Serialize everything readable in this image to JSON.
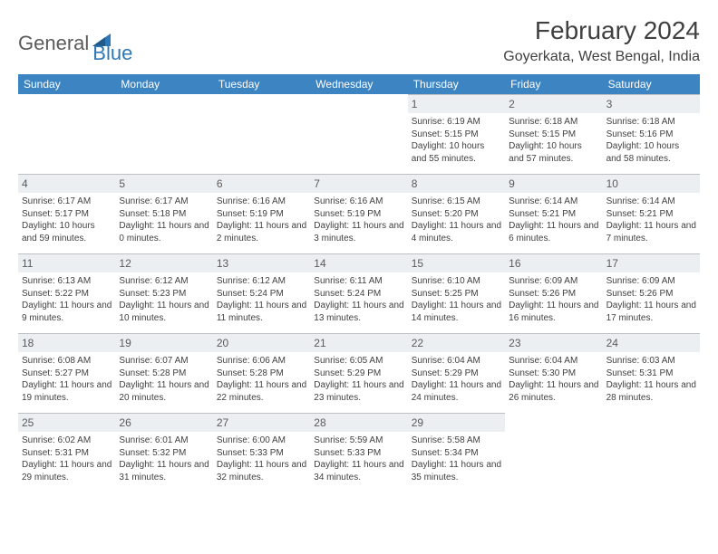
{
  "logo": {
    "text1": "General",
    "text2": "Blue",
    "icon_color": "#2f78b7",
    "text1_color": "#5a5a5a"
  },
  "header": {
    "title": "February 2024",
    "location": "Goyerkata, West Bengal, India",
    "title_color": "#404040"
  },
  "calendar": {
    "header_bg": "#3d84c2",
    "header_fg": "#ffffff",
    "daynum_bg": "#eceff1",
    "daynum_fg": "#5a5a5a",
    "border_color": "#bfbfbf",
    "text_color": "#404040",
    "columns": [
      "Sunday",
      "Monday",
      "Tuesday",
      "Wednesday",
      "Thursday",
      "Friday",
      "Saturday"
    ],
    "leading_blanks": 4,
    "days": [
      {
        "n": "1",
        "sunrise": "Sunrise: 6:19 AM",
        "sunset": "Sunset: 5:15 PM",
        "daylight": "Daylight: 10 hours and 55 minutes."
      },
      {
        "n": "2",
        "sunrise": "Sunrise: 6:18 AM",
        "sunset": "Sunset: 5:15 PM",
        "daylight": "Daylight: 10 hours and 57 minutes."
      },
      {
        "n": "3",
        "sunrise": "Sunrise: 6:18 AM",
        "sunset": "Sunset: 5:16 PM",
        "daylight": "Daylight: 10 hours and 58 minutes."
      },
      {
        "n": "4",
        "sunrise": "Sunrise: 6:17 AM",
        "sunset": "Sunset: 5:17 PM",
        "daylight": "Daylight: 10 hours and 59 minutes."
      },
      {
        "n": "5",
        "sunrise": "Sunrise: 6:17 AM",
        "sunset": "Sunset: 5:18 PM",
        "daylight": "Daylight: 11 hours and 0 minutes."
      },
      {
        "n": "6",
        "sunrise": "Sunrise: 6:16 AM",
        "sunset": "Sunset: 5:19 PM",
        "daylight": "Daylight: 11 hours and 2 minutes."
      },
      {
        "n": "7",
        "sunrise": "Sunrise: 6:16 AM",
        "sunset": "Sunset: 5:19 PM",
        "daylight": "Daylight: 11 hours and 3 minutes."
      },
      {
        "n": "8",
        "sunrise": "Sunrise: 6:15 AM",
        "sunset": "Sunset: 5:20 PM",
        "daylight": "Daylight: 11 hours and 4 minutes."
      },
      {
        "n": "9",
        "sunrise": "Sunrise: 6:14 AM",
        "sunset": "Sunset: 5:21 PM",
        "daylight": "Daylight: 11 hours and 6 minutes."
      },
      {
        "n": "10",
        "sunrise": "Sunrise: 6:14 AM",
        "sunset": "Sunset: 5:21 PM",
        "daylight": "Daylight: 11 hours and 7 minutes."
      },
      {
        "n": "11",
        "sunrise": "Sunrise: 6:13 AM",
        "sunset": "Sunset: 5:22 PM",
        "daylight": "Daylight: 11 hours and 9 minutes."
      },
      {
        "n": "12",
        "sunrise": "Sunrise: 6:12 AM",
        "sunset": "Sunset: 5:23 PM",
        "daylight": "Daylight: 11 hours and 10 minutes."
      },
      {
        "n": "13",
        "sunrise": "Sunrise: 6:12 AM",
        "sunset": "Sunset: 5:24 PM",
        "daylight": "Daylight: 11 hours and 11 minutes."
      },
      {
        "n": "14",
        "sunrise": "Sunrise: 6:11 AM",
        "sunset": "Sunset: 5:24 PM",
        "daylight": "Daylight: 11 hours and 13 minutes."
      },
      {
        "n": "15",
        "sunrise": "Sunrise: 6:10 AM",
        "sunset": "Sunset: 5:25 PM",
        "daylight": "Daylight: 11 hours and 14 minutes."
      },
      {
        "n": "16",
        "sunrise": "Sunrise: 6:09 AM",
        "sunset": "Sunset: 5:26 PM",
        "daylight": "Daylight: 11 hours and 16 minutes."
      },
      {
        "n": "17",
        "sunrise": "Sunrise: 6:09 AM",
        "sunset": "Sunset: 5:26 PM",
        "daylight": "Daylight: 11 hours and 17 minutes."
      },
      {
        "n": "18",
        "sunrise": "Sunrise: 6:08 AM",
        "sunset": "Sunset: 5:27 PM",
        "daylight": "Daylight: 11 hours and 19 minutes."
      },
      {
        "n": "19",
        "sunrise": "Sunrise: 6:07 AM",
        "sunset": "Sunset: 5:28 PM",
        "daylight": "Daylight: 11 hours and 20 minutes."
      },
      {
        "n": "20",
        "sunrise": "Sunrise: 6:06 AM",
        "sunset": "Sunset: 5:28 PM",
        "daylight": "Daylight: 11 hours and 22 minutes."
      },
      {
        "n": "21",
        "sunrise": "Sunrise: 6:05 AM",
        "sunset": "Sunset: 5:29 PM",
        "daylight": "Daylight: 11 hours and 23 minutes."
      },
      {
        "n": "22",
        "sunrise": "Sunrise: 6:04 AM",
        "sunset": "Sunset: 5:29 PM",
        "daylight": "Daylight: 11 hours and 24 minutes."
      },
      {
        "n": "23",
        "sunrise": "Sunrise: 6:04 AM",
        "sunset": "Sunset: 5:30 PM",
        "daylight": "Daylight: 11 hours and 26 minutes."
      },
      {
        "n": "24",
        "sunrise": "Sunrise: 6:03 AM",
        "sunset": "Sunset: 5:31 PM",
        "daylight": "Daylight: 11 hours and 28 minutes."
      },
      {
        "n": "25",
        "sunrise": "Sunrise: 6:02 AM",
        "sunset": "Sunset: 5:31 PM",
        "daylight": "Daylight: 11 hours and 29 minutes."
      },
      {
        "n": "26",
        "sunrise": "Sunrise: 6:01 AM",
        "sunset": "Sunset: 5:32 PM",
        "daylight": "Daylight: 11 hours and 31 minutes."
      },
      {
        "n": "27",
        "sunrise": "Sunrise: 6:00 AM",
        "sunset": "Sunset: 5:33 PM",
        "daylight": "Daylight: 11 hours and 32 minutes."
      },
      {
        "n": "28",
        "sunrise": "Sunrise: 5:59 AM",
        "sunset": "Sunset: 5:33 PM",
        "daylight": "Daylight: 11 hours and 34 minutes."
      },
      {
        "n": "29",
        "sunrise": "Sunrise: 5:58 AM",
        "sunset": "Sunset: 5:34 PM",
        "daylight": "Daylight: 11 hours and 35 minutes."
      }
    ]
  }
}
